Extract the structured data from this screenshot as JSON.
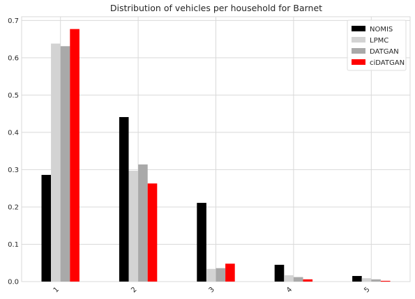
{
  "chart_data": {
    "type": "bar",
    "title": "Distribution of vehicles per household for Barnet",
    "xlabel": "",
    "ylabel": "",
    "categories": [
      "1",
      "2",
      "3",
      "4",
      "5"
    ],
    "series": [
      {
        "name": "NOMIS",
        "color": "#000000",
        "values": [
          0.286,
          0.441,
          0.211,
          0.045,
          0.015
        ]
      },
      {
        "name": "LPMC",
        "color": "#d3d3d3",
        "values": [
          0.638,
          0.297,
          0.034,
          0.017,
          0.009
        ]
      },
      {
        "name": "DATGAN",
        "color": "#a9a9a9",
        "values": [
          0.631,
          0.314,
          0.036,
          0.012,
          0.006
        ]
      },
      {
        "name": "ciDATGAN",
        "color": "#ff0000",
        "values": [
          0.677,
          0.263,
          0.048,
          0.006,
          0.002
        ]
      }
    ],
    "ylim": [
      0,
      0.71
    ],
    "yticks": [
      "0.0",
      "0.1",
      "0.2",
      "0.3",
      "0.4",
      "0.5",
      "0.6",
      "0.7"
    ],
    "grid": true,
    "legend": "top-right",
    "xtick_rotation": 45
  }
}
